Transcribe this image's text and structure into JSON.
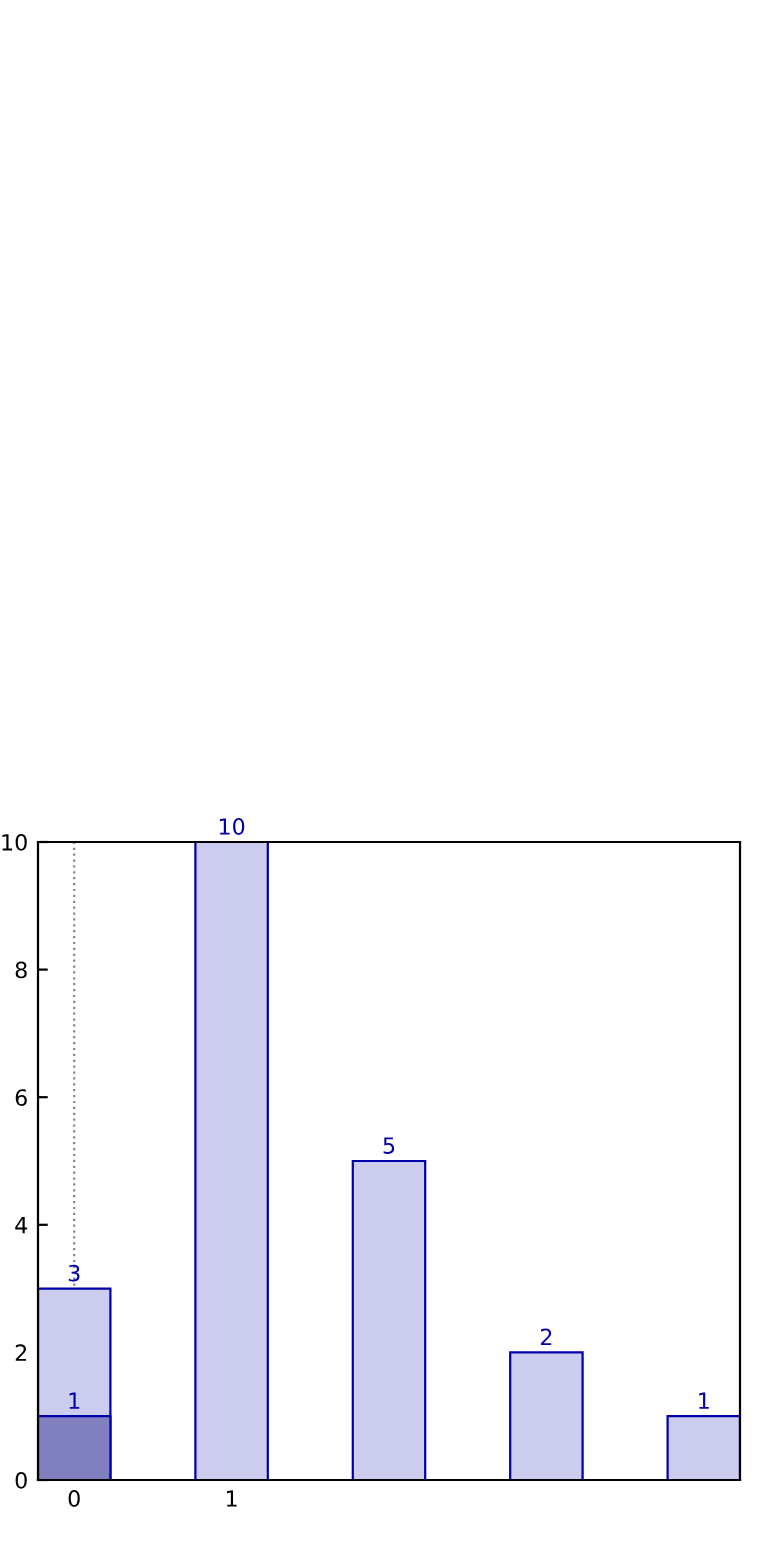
{
  "chart_data": {
    "type": "bar",
    "x": [
      0,
      1,
      2,
      3,
      4
    ],
    "series": [
      {
        "color": "#ccccee",
        "values": [
          3,
          10,
          5,
          2,
          1
        ]
      },
      {
        "color": "#8080c0",
        "values": [
          1,
          null,
          null,
          null,
          null
        ]
      }
    ],
    "xlim": [
      -0.23,
      4.23
    ],
    "xticks": [
      0,
      1
    ],
    "ylim": [
      0,
      10
    ],
    "yticks": [
      0,
      2,
      4,
      6,
      8,
      10
    ],
    "grid": "x",
    "data_labels": true,
    "legend": false
  }
}
